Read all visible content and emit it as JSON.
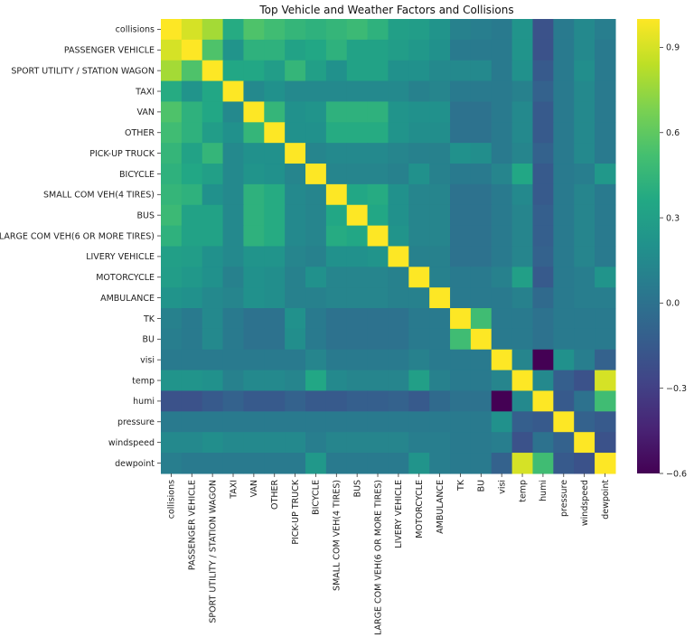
{
  "chart_data": {
    "type": "heatmap",
    "title": "Top Vehicle and Weather Factors and Collisions",
    "labels": [
      "collisions",
      "PASSENGER VEHICLE",
      "SPORT UTILITY / STATION WAGON",
      "TAXI",
      "VAN",
      "OTHER",
      "PICK-UP TRUCK",
      "BICYCLE",
      "SMALL COM VEH(4 TIRES)",
      "BUS",
      "LARGE COM VEH(6 OR MORE TIRES)",
      "LIVERY VEHICLE",
      "MOTORCYCLE",
      "AMBULANCE",
      "TK",
      "BU",
      "visi",
      "temp",
      "humi",
      "pressure",
      "windspeed",
      "dewpoint"
    ],
    "matrix": [
      [
        1.0,
        0.9,
        0.78,
        0.38,
        0.55,
        0.5,
        0.45,
        0.42,
        0.45,
        0.48,
        0.42,
        0.3,
        0.28,
        0.22,
        0.1,
        0.08,
        0.05,
        0.22,
        -0.2,
        0.05,
        0.15,
        0.08
      ],
      [
        0.9,
        1.0,
        0.55,
        0.22,
        0.42,
        0.42,
        0.32,
        0.35,
        0.42,
        0.32,
        0.32,
        0.28,
        0.25,
        0.2,
        0.05,
        0.05,
        0.05,
        0.22,
        -0.2,
        0.05,
        0.15,
        0.05
      ],
      [
        0.78,
        0.55,
        1.0,
        0.35,
        0.35,
        0.28,
        0.45,
        0.3,
        0.2,
        0.32,
        0.32,
        0.2,
        0.2,
        0.15,
        0.15,
        0.15,
        0.05,
        0.2,
        -0.15,
        0.05,
        0.18,
        0.05
      ],
      [
        0.38,
        0.22,
        0.35,
        1.0,
        0.15,
        0.2,
        0.15,
        0.15,
        0.15,
        0.15,
        0.15,
        0.15,
        0.1,
        0.12,
        0.05,
        0.05,
        0.05,
        0.1,
        -0.1,
        0.05,
        0.15,
        0.05
      ],
      [
        0.55,
        0.42,
        0.35,
        0.15,
        1.0,
        0.45,
        0.2,
        0.22,
        0.42,
        0.42,
        0.42,
        0.22,
        0.2,
        0.2,
        0.0,
        0.0,
        0.05,
        0.15,
        -0.15,
        0.05,
        0.15,
        0.05
      ],
      [
        0.5,
        0.42,
        0.28,
        0.2,
        0.45,
        1.0,
        0.2,
        0.2,
        0.38,
        0.38,
        0.38,
        0.22,
        0.18,
        0.18,
        0.0,
        0.0,
        0.05,
        0.15,
        -0.15,
        0.05,
        0.15,
        0.05
      ],
      [
        0.45,
        0.32,
        0.45,
        0.15,
        0.2,
        0.2,
        1.0,
        0.12,
        0.15,
        0.15,
        0.15,
        0.12,
        0.1,
        0.1,
        0.2,
        0.18,
        0.05,
        0.12,
        -0.1,
        0.05,
        0.15,
        0.05
      ],
      [
        0.42,
        0.35,
        0.3,
        0.15,
        0.22,
        0.2,
        0.12,
        1.0,
        0.12,
        0.12,
        0.12,
        0.1,
        0.2,
        0.1,
        0.05,
        0.05,
        0.12,
        0.35,
        -0.15,
        0.05,
        0.08,
        0.25
      ],
      [
        0.45,
        0.42,
        0.2,
        0.15,
        0.42,
        0.38,
        0.15,
        0.12,
        1.0,
        0.35,
        0.38,
        0.2,
        0.12,
        0.12,
        0.0,
        0.0,
        0.05,
        0.15,
        -0.15,
        0.05,
        0.12,
        0.05
      ],
      [
        0.48,
        0.32,
        0.32,
        0.15,
        0.42,
        0.38,
        0.15,
        0.12,
        0.35,
        1.0,
        0.35,
        0.2,
        0.12,
        0.12,
        0.0,
        0.0,
        0.05,
        0.12,
        -0.12,
        0.05,
        0.12,
        0.05
      ],
      [
        0.42,
        0.32,
        0.32,
        0.15,
        0.42,
        0.38,
        0.15,
        0.12,
        0.38,
        0.35,
        1.0,
        0.22,
        0.12,
        0.12,
        0.0,
        0.0,
        0.05,
        0.12,
        -0.12,
        0.05,
        0.12,
        0.05
      ],
      [
        0.3,
        0.28,
        0.2,
        0.15,
        0.22,
        0.22,
        0.12,
        0.1,
        0.2,
        0.2,
        0.22,
        1.0,
        0.1,
        0.1,
        0.0,
        0.0,
        0.05,
        0.12,
        -0.1,
        0.05,
        0.12,
        0.05
      ],
      [
        0.28,
        0.25,
        0.2,
        0.1,
        0.2,
        0.18,
        0.1,
        0.2,
        0.12,
        0.12,
        0.12,
        0.1,
        1.0,
        0.1,
        0.05,
        0.05,
        0.1,
        0.3,
        -0.15,
        0.05,
        0.08,
        0.22
      ],
      [
        0.22,
        0.2,
        0.15,
        0.12,
        0.2,
        0.18,
        0.1,
        0.1,
        0.12,
        0.12,
        0.12,
        0.1,
        0.1,
        1.0,
        0.05,
        0.05,
        0.05,
        0.1,
        -0.05,
        0.05,
        0.08,
        0.08
      ],
      [
        0.1,
        0.05,
        0.15,
        0.05,
        0.0,
        0.0,
        0.2,
        0.05,
        0.0,
        0.0,
        0.0,
        0.0,
        0.05,
        0.05,
        1.0,
        0.5,
        0.05,
        0.05,
        0.0,
        0.05,
        0.05,
        0.05
      ],
      [
        0.08,
        0.05,
        0.15,
        0.05,
        0.0,
        0.0,
        0.18,
        0.05,
        0.0,
        0.0,
        0.0,
        0.0,
        0.05,
        0.05,
        0.5,
        1.0,
        0.05,
        0.05,
        0.0,
        0.05,
        0.05,
        0.05
      ],
      [
        0.05,
        0.05,
        0.05,
        0.05,
        0.05,
        0.05,
        0.05,
        0.12,
        0.05,
        0.05,
        0.05,
        0.05,
        0.1,
        0.05,
        0.05,
        0.05,
        1.0,
        0.12,
        -0.6,
        0.2,
        0.08,
        -0.1
      ],
      [
        0.22,
        0.22,
        0.2,
        0.1,
        0.15,
        0.15,
        0.12,
        0.35,
        0.15,
        0.12,
        0.12,
        0.12,
        0.3,
        0.1,
        0.05,
        0.05,
        0.12,
        1.0,
        0.15,
        -0.12,
        -0.2,
        0.9
      ],
      [
        -0.2,
        -0.2,
        -0.15,
        -0.1,
        -0.15,
        -0.15,
        -0.1,
        -0.15,
        -0.15,
        -0.12,
        -0.12,
        -0.1,
        -0.15,
        -0.05,
        0.0,
        0.0,
        -0.6,
        0.15,
        1.0,
        -0.15,
        0.0,
        0.5
      ],
      [
        0.05,
        0.05,
        0.05,
        0.05,
        0.05,
        0.05,
        0.05,
        0.05,
        0.05,
        0.05,
        0.05,
        0.05,
        0.05,
        0.05,
        0.05,
        0.05,
        0.2,
        -0.12,
        -0.15,
        1.0,
        -0.1,
        -0.15
      ],
      [
        0.15,
        0.15,
        0.18,
        0.15,
        0.15,
        0.15,
        0.15,
        0.08,
        0.12,
        0.12,
        0.12,
        0.12,
        0.08,
        0.08,
        0.05,
        0.05,
        0.08,
        -0.2,
        0.0,
        -0.1,
        1.0,
        -0.2
      ],
      [
        0.08,
        0.05,
        0.05,
        0.05,
        0.05,
        0.05,
        0.05,
        0.25,
        0.05,
        0.05,
        0.05,
        0.05,
        0.22,
        0.08,
        0.05,
        0.05,
        -0.1,
        0.9,
        0.5,
        -0.15,
        -0.2,
        1.0
      ]
    ],
    "colormap": "viridis",
    "vmin": -0.6,
    "vmax": 1.0,
    "colorbar_ticks": [
      0.9,
      0.6,
      0.3,
      0.0,
      -0.3,
      -0.6
    ],
    "colorbar_tick_labels": [
      "0.9",
      "0.6",
      "0.3",
      "0.0",
      "−0.3",
      "−0.6"
    ],
    "grid": false
  }
}
